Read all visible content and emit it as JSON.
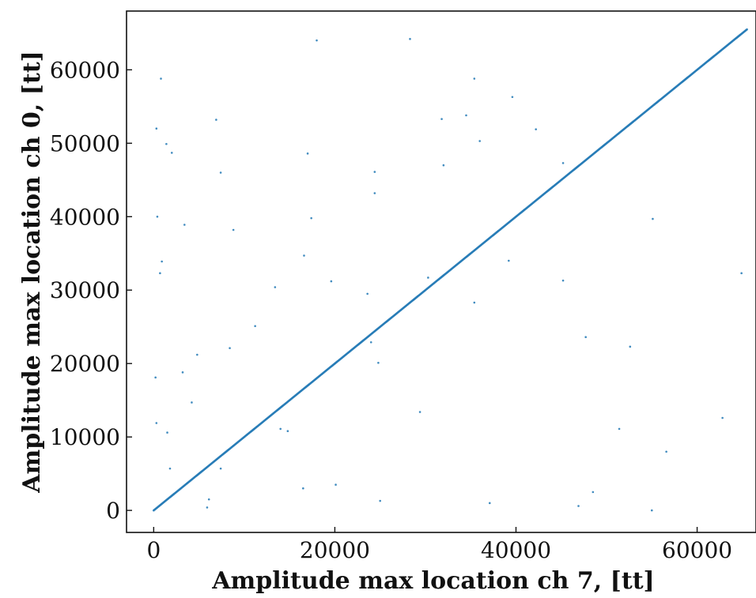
{
  "chart_data": {
    "type": "scatter",
    "xlabel": "Amplitude max location ch 7, [tt]",
    "ylabel": "Amplitude max location ch 0, [tt]",
    "xlim": [
      -3000,
      66500
    ],
    "ylim": [
      -3000,
      68000
    ],
    "xticks": [
      0,
      20000,
      40000,
      60000
    ],
    "yticks": [
      0,
      10000,
      20000,
      30000,
      40000,
      50000,
      60000
    ],
    "xtick_labels": [
      "0",
      "20000",
      "40000",
      "60000"
    ],
    "ytick_labels": [
      "0",
      "10000",
      "20000",
      "30000",
      "40000",
      "50000",
      "60000"
    ],
    "grid": false,
    "legend": "none",
    "color": "#1f77b4",
    "diagonal_series": {
      "description_free": true,
      "x_start": 0,
      "x_end": 65500,
      "count": 700
    },
    "outliers": [
      [
        800,
        58800
      ],
      [
        18000,
        64000
      ],
      [
        28300,
        64200
      ],
      [
        35400,
        58800
      ],
      [
        39600,
        56300
      ],
      [
        300,
        52000
      ],
      [
        6900,
        53200
      ],
      [
        31800,
        53300
      ],
      [
        34500,
        53800
      ],
      [
        42200,
        51900
      ],
      [
        1400,
        49900
      ],
      [
        2000,
        48700
      ],
      [
        17000,
        48600
      ],
      [
        36000,
        50300
      ],
      [
        32000,
        47000
      ],
      [
        7400,
        46000
      ],
      [
        24400,
        46100
      ],
      [
        45200,
        47300
      ],
      [
        24400,
        43200
      ],
      [
        400,
        40000
      ],
      [
        3400,
        38900
      ],
      [
        8800,
        38200
      ],
      [
        17400,
        39800
      ],
      [
        55100,
        39700
      ],
      [
        900,
        33900
      ],
      [
        700,
        32300
      ],
      [
        16600,
        34700
      ],
      [
        39200,
        34000
      ],
      [
        64900,
        32300
      ],
      [
        13400,
        30400
      ],
      [
        19600,
        31200
      ],
      [
        23600,
        29500
      ],
      [
        30300,
        31700
      ],
      [
        35400,
        28300
      ],
      [
        45200,
        31300
      ],
      [
        11200,
        25100
      ],
      [
        8400,
        22100
      ],
      [
        4800,
        21200
      ],
      [
        3200,
        18800
      ],
      [
        24800,
        20100
      ],
      [
        47700,
        23600
      ],
      [
        52600,
        22300
      ],
      [
        24000,
        22900
      ],
      [
        200,
        18100
      ],
      [
        4200,
        14700
      ],
      [
        29400,
        13400
      ],
      [
        62800,
        12600
      ],
      [
        300,
        11900
      ],
      [
        1500,
        10600
      ],
      [
        14000,
        11100
      ],
      [
        14800,
        10800
      ],
      [
        51400,
        11100
      ],
      [
        56600,
        8000
      ],
      [
        1800,
        5700
      ],
      [
        7400,
        5700
      ],
      [
        16500,
        3000
      ],
      [
        20100,
        3500
      ],
      [
        6100,
        1500
      ],
      [
        5900,
        400
      ],
      [
        25000,
        1300
      ],
      [
        37100,
        1000
      ],
      [
        46900,
        600
      ],
      [
        48500,
        2500
      ],
      [
        55000,
        0
      ]
    ]
  }
}
